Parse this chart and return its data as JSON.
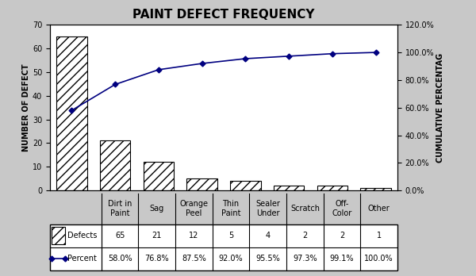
{
  "title": "PAINT DEFECT FREQUENCY",
  "categories": [
    "Dirt in\nPaint",
    "Sag",
    "Orange\nPeel",
    "Thin\nPaint",
    "Sealer\nUnder",
    "Scratch",
    "Off-\nColor",
    "Other"
  ],
  "defects": [
    65,
    21,
    12,
    5,
    4,
    2,
    2,
    1
  ],
  "percents": [
    58.0,
    76.8,
    87.5,
    92.0,
    95.5,
    97.3,
    99.1,
    100.0
  ],
  "percent_labels": [
    "58.0%",
    "76.8%",
    "87.5%",
    "92.0%",
    "95.5%",
    "97.3%",
    "99.1%",
    "100.0%"
  ],
  "defect_labels": [
    "65",
    "21",
    "12",
    "5",
    "4",
    "2",
    "2",
    "1"
  ],
  "ylabel_left": "NUMBER OF DEFECT",
  "ylabel_right": "CUMULATIVE PERCENTAG",
  "ylim_left": [
    0,
    70
  ],
  "ylim_right": [
    0,
    120.0
  ],
  "yticks_left": [
    0,
    10,
    20,
    30,
    40,
    50,
    60,
    70
  ],
  "yticks_right": [
    0.0,
    20.0,
    40.0,
    60.0,
    80.0,
    100.0,
    120.0
  ],
  "ytick_right_labels": [
    "0.0%",
    "20.0%",
    "40.0%",
    "60.0%",
    "80.0%",
    "100.0%",
    "120.0%"
  ],
  "bar_color": "white",
  "bar_edgecolor": "black",
  "line_color": "navy",
  "line_marker": "D",
  "hatch_pattern": "///",
  "bg_color": "white",
  "outer_bg": "#c8c8c8",
  "table_row1_label": "Defects",
  "table_row2_label": "Percent",
  "title_fontsize": 11,
  "axis_label_fontsize": 7,
  "tick_fontsize": 7,
  "table_fontsize": 7
}
